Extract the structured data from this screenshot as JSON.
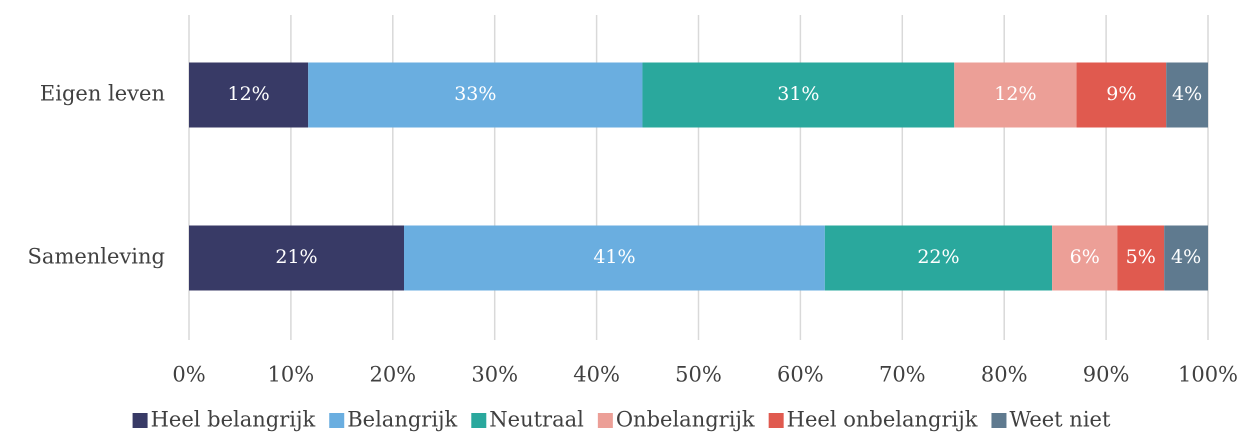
{
  "chart_data": {
    "type": "stacked_barh",
    "categories": [
      "Eigen leven",
      "Samenleving"
    ],
    "series": [
      {
        "name": "Heel belangrijk",
        "color": "#383a66",
        "values": [
          11.7,
          21.1
        ],
        "value_labels": [
          "12%",
          "21%"
        ]
      },
      {
        "name": "Belangrijk",
        "color": "#6aaee0",
        "values": [
          32.8,
          41.3
        ],
        "value_labels": [
          "33%",
          "41%"
        ]
      },
      {
        "name": "Neutraal",
        "color": "#2aa89d",
        "values": [
          30.6,
          22.3
        ],
        "value_labels": [
          "31%",
          "22%"
        ]
      },
      {
        "name": "Onbelangrijk",
        "color": "#ec9f97",
        "values": [
          12.0,
          6.4
        ],
        "value_labels": [
          "12%",
          "6%"
        ]
      },
      {
        "name": "Heel onbelangrijk",
        "color": "#e05a4f",
        "values": [
          8.8,
          4.6
        ],
        "value_labels": [
          "9%",
          "5%"
        ]
      },
      {
        "name": "Weet niet",
        "color": "#5f7a8f",
        "values": [
          4.1,
          4.3
        ],
        "value_labels": [
          "4%",
          "4%"
        ]
      }
    ],
    "xlim": [
      0,
      100
    ],
    "xticks": [
      {
        "value": 0,
        "label": "0%"
      },
      {
        "value": 10,
        "label": "10%"
      },
      {
        "value": 20,
        "label": "20%"
      },
      {
        "value": 30,
        "label": "30%"
      },
      {
        "value": 40,
        "label": "40%"
      },
      {
        "value": 50,
        "label": "50%"
      },
      {
        "value": 60,
        "label": "60%"
      },
      {
        "value": 70,
        "label": "70%"
      },
      {
        "value": 80,
        "label": "80%"
      },
      {
        "value": 90,
        "label": "90%"
      },
      {
        "value": 100,
        "label": "100%"
      }
    ],
    "grid": true,
    "legend": "bottom"
  }
}
